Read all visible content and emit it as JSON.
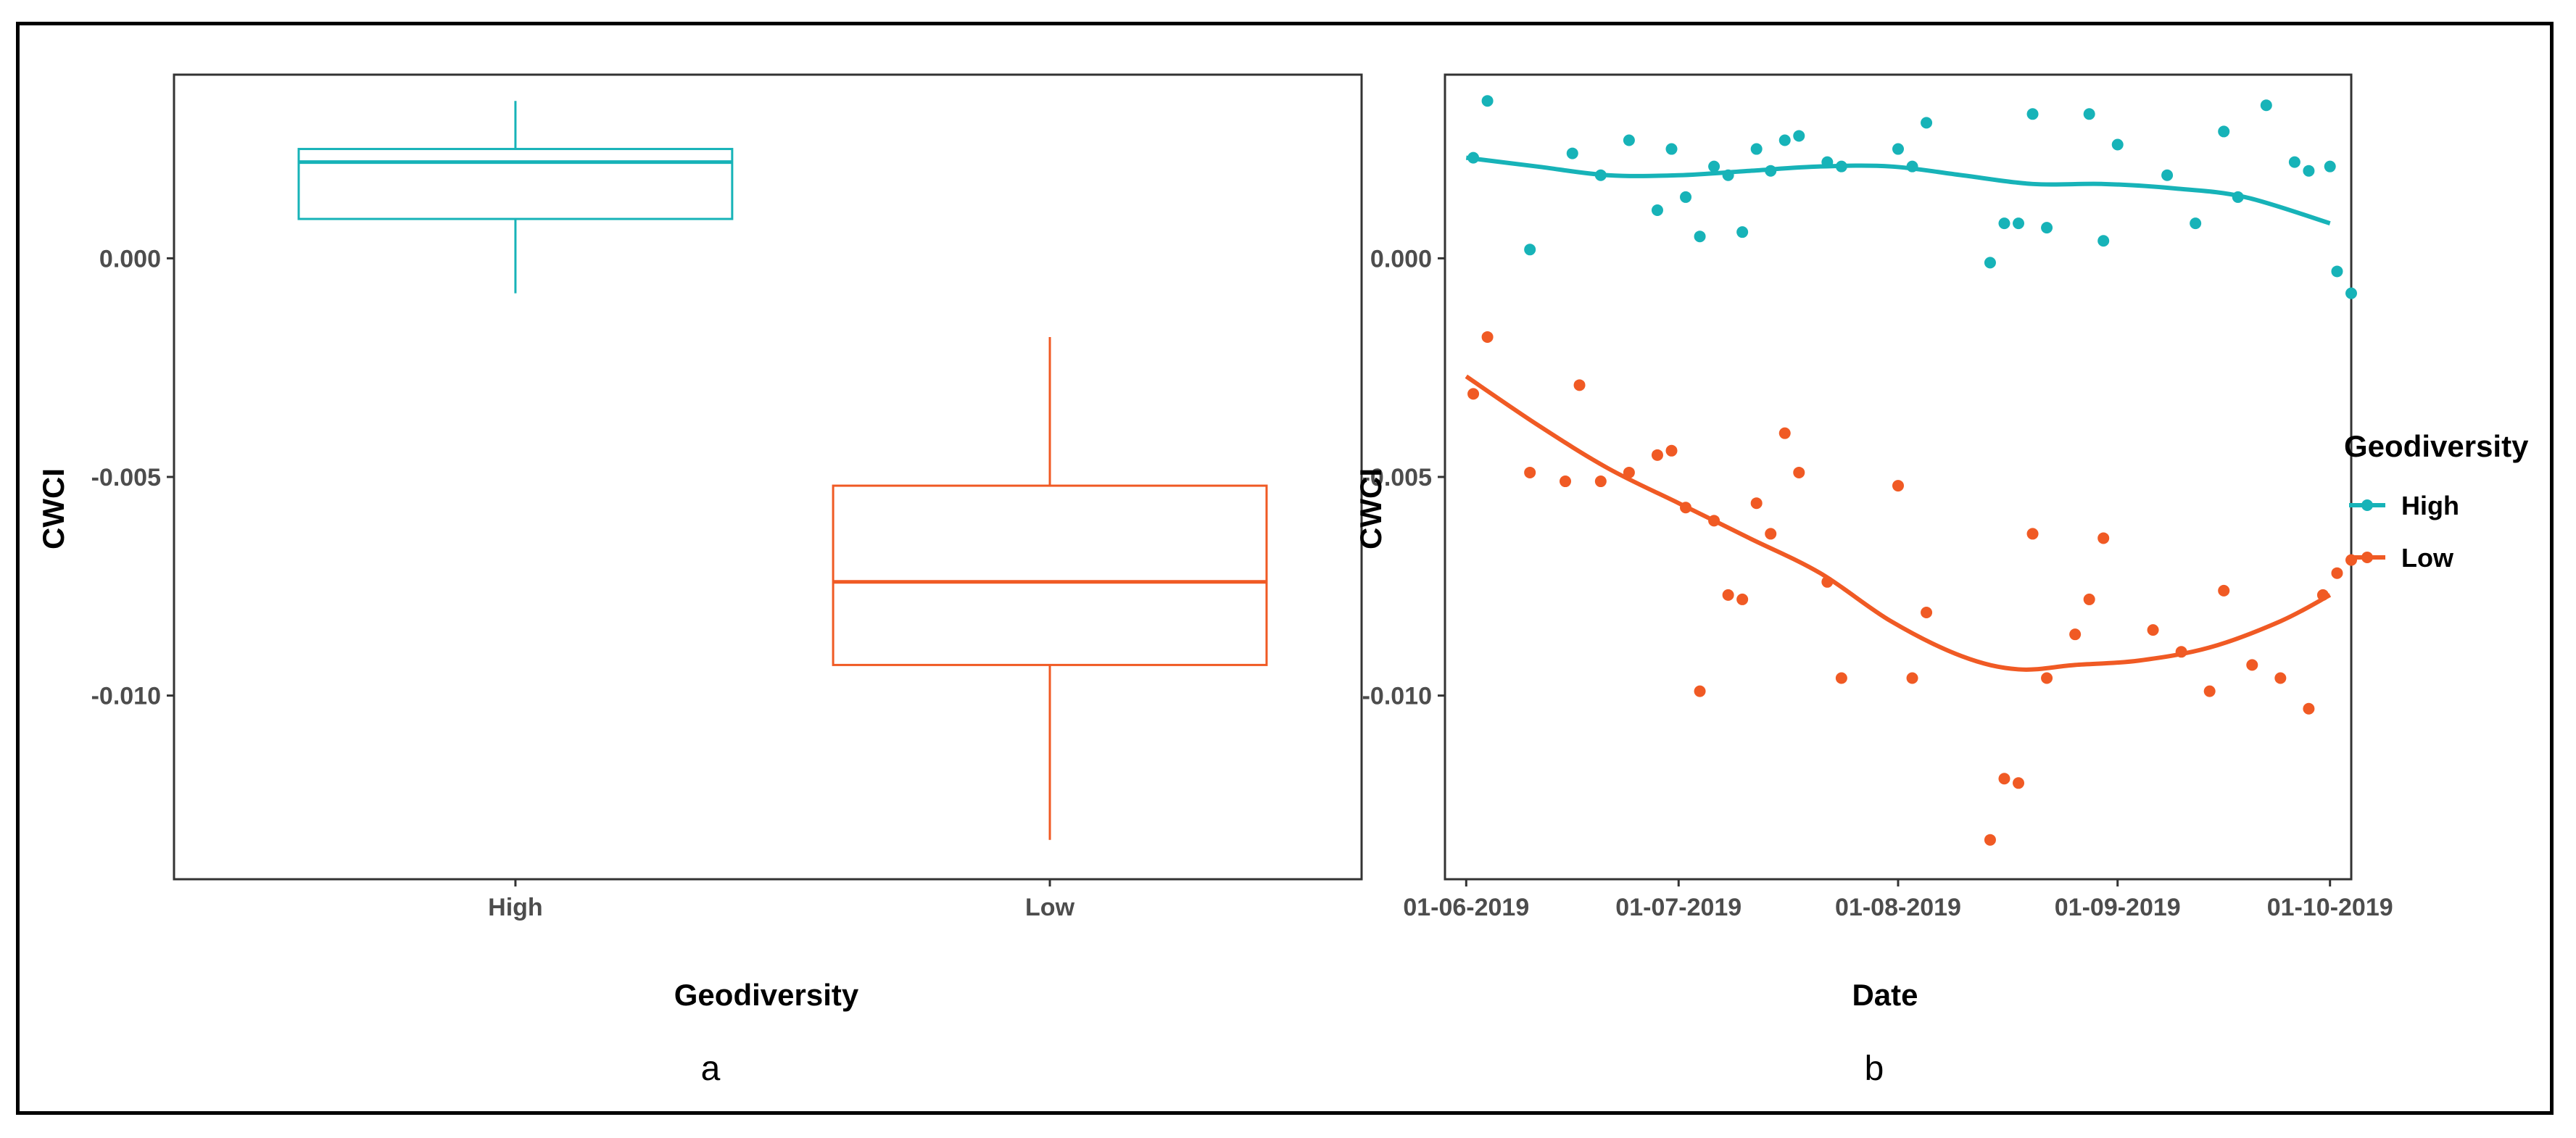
{
  "colors": {
    "high": "#17B3B8",
    "low": "#F05A24",
    "axis": "#333333",
    "tick_text": "#4d4d4d"
  },
  "chart_data": [
    {
      "panel": "a",
      "type": "box",
      "xlabel": "Geodiversity",
      "ylabel": "CWCI",
      "categories": [
        "High",
        "Low"
      ],
      "ylim": [
        -0.0142,
        0.0042
      ],
      "yticks": [
        0.0,
        -0.005,
        -0.01
      ],
      "ytick_labels": [
        "0.000",
        "-0.005",
        "-0.010"
      ],
      "boxes": [
        {
          "name": "High",
          "min": -0.0008,
          "q1": 0.0009,
          "median": 0.0022,
          "q3": 0.0025,
          "max": 0.0036
        },
        {
          "name": "Low",
          "min": -0.0133,
          "q1": -0.0093,
          "median": -0.0074,
          "q3": -0.0052,
          "max": -0.0018
        }
      ]
    },
    {
      "panel": "b",
      "type": "scatter",
      "xlabel": "Date",
      "ylabel": "CWCI",
      "x_unit": "days since 01-06-2019",
      "xlim": [
        -3,
        125
      ],
      "ylim": [
        -0.0142,
        0.0042
      ],
      "xticks": [
        0,
        30,
        61,
        92,
        122
      ],
      "xtick_labels": [
        "01-06-2019",
        "01-07-2019",
        "01-08-2019",
        "01-09-2019",
        "01-10-2019"
      ],
      "yticks": [
        0.0,
        -0.005,
        -0.01
      ],
      "ytick_labels": [
        "0.000",
        "-0.005",
        "-0.010"
      ],
      "legend": {
        "title": "Geodiversity",
        "entries": [
          "High",
          "Low"
        ],
        "position": "right"
      },
      "series": [
        {
          "name": "High",
          "points": [
            [
              1,
              0.0023
            ],
            [
              3,
              0.0036
            ],
            [
              9,
              0.0002
            ],
            [
              15,
              0.0024
            ],
            [
              19,
              0.0019
            ],
            [
              23,
              0.0027
            ],
            [
              27,
              0.0011
            ],
            [
              29,
              0.0025
            ],
            [
              31,
              0.0014
            ],
            [
              33,
              0.0005
            ],
            [
              35,
              0.0021
            ],
            [
              37,
              0.0019
            ],
            [
              39,
              0.0006
            ],
            [
              41,
              0.0025
            ],
            [
              43,
              0.002
            ],
            [
              45,
              0.0027
            ],
            [
              47,
              0.0028
            ],
            [
              51,
              0.0022
            ],
            [
              53,
              0.0021
            ],
            [
              61,
              0.0025
            ],
            [
              63,
              0.0021
            ],
            [
              65,
              0.0031
            ],
            [
              74,
              -0.0001
            ],
            [
              76,
              0.0008
            ],
            [
              78,
              0.0008
            ],
            [
              80,
              0.0033
            ],
            [
              82,
              0.0007
            ],
            [
              88,
              0.0033
            ],
            [
              90,
              0.0004
            ],
            [
              92,
              0.0026
            ],
            [
              99,
              0.0019
            ],
            [
              103,
              0.0008
            ],
            [
              107,
              0.0029
            ],
            [
              109,
              0.0014
            ],
            [
              113,
              0.0035
            ],
            [
              117,
              0.0022
            ],
            [
              123,
              -0.0003
            ],
            [
              119,
              0.002
            ],
            [
              122,
              0.0021
            ],
            [
              125,
              -0.0008
            ]
          ],
          "smooth": [
            [
              0,
              0.0023
            ],
            [
              10,
              0.0021
            ],
            [
              20,
              0.0019
            ],
            [
              30,
              0.0019
            ],
            [
              40,
              0.002
            ],
            [
              50,
              0.0021
            ],
            [
              60,
              0.0021
            ],
            [
              70,
              0.0019
            ],
            [
              80,
              0.0017
            ],
            [
              90,
              0.0017
            ],
            [
              100,
              0.0016
            ],
            [
              110,
              0.0014
            ],
            [
              122,
              0.0008
            ]
          ]
        },
        {
          "name": "Low",
          "points": [
            [
              1,
              -0.0031
            ],
            [
              3,
              -0.0018
            ],
            [
              9,
              -0.0049
            ],
            [
              14,
              -0.0051
            ],
            [
              16,
              -0.0029
            ],
            [
              19,
              -0.0051
            ],
            [
              23,
              -0.0049
            ],
            [
              27,
              -0.0045
            ],
            [
              29,
              -0.0044
            ],
            [
              31,
              -0.0057
            ],
            [
              33,
              -0.0099
            ],
            [
              35,
              -0.006
            ],
            [
              37,
              -0.0077
            ],
            [
              39,
              -0.0078
            ],
            [
              41,
              -0.0056
            ],
            [
              43,
              -0.0063
            ],
            [
              45,
              -0.004
            ],
            [
              47,
              -0.0049
            ],
            [
              51,
              -0.0074
            ],
            [
              53,
              -0.0096
            ],
            [
              61,
              -0.0052
            ],
            [
              63,
              -0.0096
            ],
            [
              65,
              -0.0081
            ],
            [
              74,
              -0.0133
            ],
            [
              76,
              -0.0119
            ],
            [
              78,
              -0.012
            ],
            [
              80,
              -0.0063
            ],
            [
              82,
              -0.0096
            ],
            [
              86,
              -0.0086
            ],
            [
              88,
              -0.0078
            ],
            [
              90,
              -0.0064
            ],
            [
              97,
              -0.0085
            ],
            [
              101,
              -0.009
            ],
            [
              105,
              -0.0099
            ],
            [
              107,
              -0.0076
            ],
            [
              111,
              -0.0093
            ],
            [
              115,
              -0.0096
            ],
            [
              119,
              -0.0103
            ],
            [
              121,
              -0.0077
            ],
            [
              123,
              -0.0072
            ],
            [
              125,
              -0.0069
            ]
          ],
          "smooth": [
            [
              0,
              -0.0027
            ],
            [
              10,
              -0.0038
            ],
            [
              20,
              -0.0048
            ],
            [
              30,
              -0.0056
            ],
            [
              40,
              -0.0064
            ],
            [
              50,
              -0.0072
            ],
            [
              60,
              -0.0083
            ],
            [
              70,
              -0.0091
            ],
            [
              78,
              -0.0094
            ],
            [
              86,
              -0.0093
            ],
            [
              95,
              -0.0092
            ],
            [
              105,
              -0.0089
            ],
            [
              115,
              -0.0083
            ],
            [
              122,
              -0.0077
            ]
          ]
        }
      ]
    }
  ],
  "panel_labels": [
    "a",
    "b"
  ]
}
